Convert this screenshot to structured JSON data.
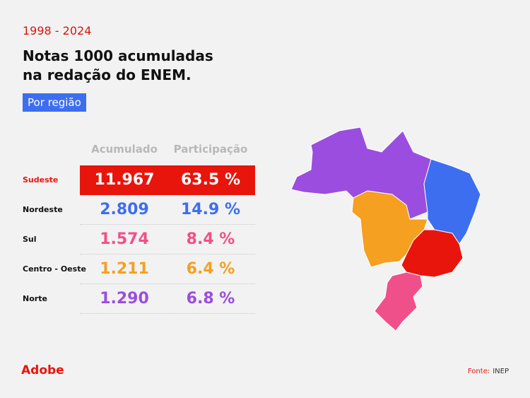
{
  "header": {
    "period": "1998 - 2024",
    "title_lines": [
      "Notas 1000 acumuladas",
      "na redação do ENEM."
    ],
    "badge": "Por região"
  },
  "table": {
    "columns": [
      "Acumulado",
      "Participação"
    ],
    "rows": [
      {
        "region": "Sudeste",
        "total": "11.967",
        "share": "63.5 %"
      },
      {
        "region": "Nordeste",
        "total": "2.809",
        "share": "14.9 %"
      },
      {
        "region": "Sul",
        "total": "1.574",
        "share": "8.4 %"
      },
      {
        "region": "Centro - Oeste",
        "total": "1.211",
        "share": "6.4 %"
      },
      {
        "region": "Norte",
        "total": "1.290",
        "share": "6.8 %"
      }
    ]
  },
  "footer": {
    "logo": "Adobe",
    "source_label": "Fonte:",
    "source": "INEP"
  }
}
